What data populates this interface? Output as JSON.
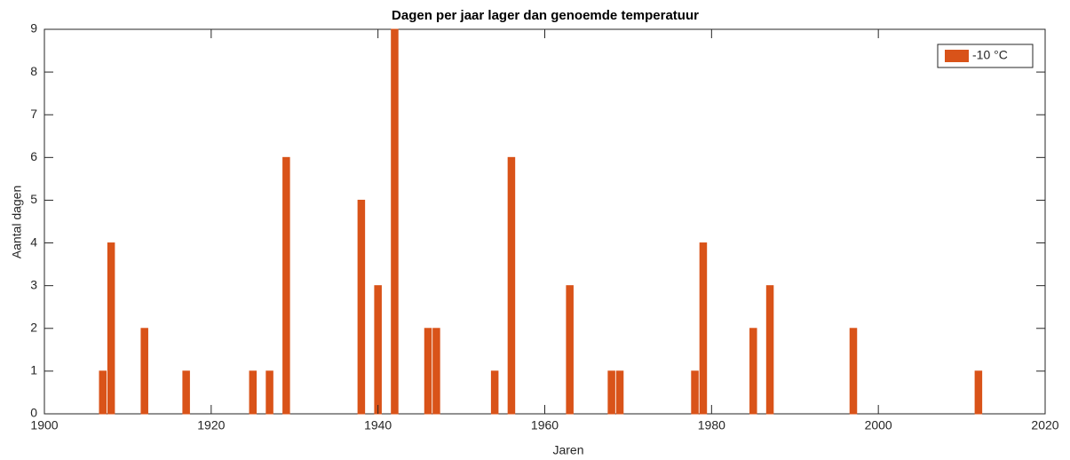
{
  "chart_data": {
    "type": "bar",
    "title": "Dagen per jaar lager dan genoemde temperatuur",
    "x_label": "Jaren",
    "y_label": "Aantal dagen",
    "x": [
      1907,
      1908,
      1912,
      1917,
      1925,
      1927,
      1929,
      1938,
      1940,
      1942,
      1946,
      1947,
      1954,
      1956,
      1963,
      1968,
      1969,
      1978,
      1979,
      1985,
      1987,
      1997,
      2012
    ],
    "series": [
      {
        "name": "-10 °C",
        "color": "#d95319",
        "values": [
          1,
          4,
          2,
          1,
          1,
          1,
          6,
          5,
          3,
          9,
          2,
          2,
          1,
          6,
          3,
          1,
          1,
          1,
          4,
          2,
          3,
          2,
          1
        ]
      }
    ],
    "xlim": [
      1900,
      2020
    ],
    "xticks": [
      1900,
      1920,
      1940,
      1960,
      1980,
      2000,
      2020
    ],
    "ylim": [
      0,
      9
    ],
    "yticks": [
      0,
      1,
      2,
      3,
      4,
      5,
      6,
      7,
      8,
      9
    ],
    "legend": "northeast"
  }
}
